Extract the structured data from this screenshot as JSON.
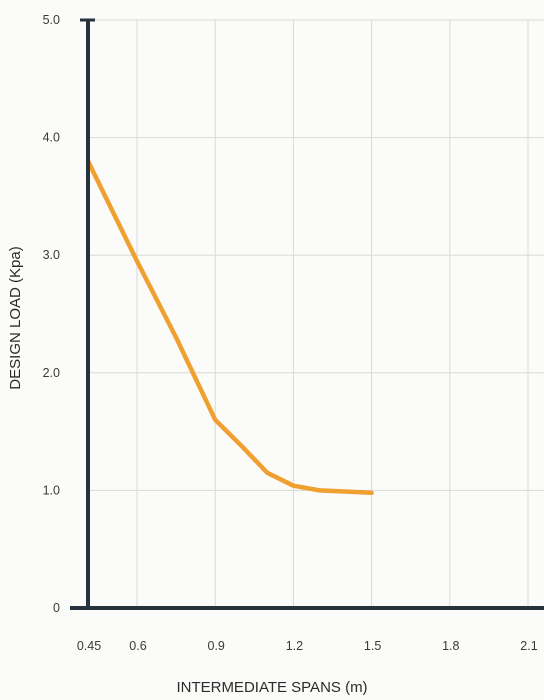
{
  "chart_data": {
    "type": "line",
    "title": "",
    "xlabel": "INTERMEDIATE SPANS (m)",
    "ylabel": "DESIGN LOAD  (Kpa)",
    "x_ticks": [
      0.45,
      0.6,
      0.9,
      1.2,
      1.5,
      1.8,
      2.1
    ],
    "x_tick_labels": [
      "0.45",
      "0.6",
      "0.9",
      "1.2",
      "1.5",
      "1.8",
      "2.1"
    ],
    "y_ticks": [
      0,
      1,
      2,
      3,
      4,
      5
    ],
    "y_tick_labels": [
      "0",
      "1.0",
      "2.0",
      "3.0",
      "4.0",
      "5.0"
    ],
    "xlim": [
      0.45,
      2.2
    ],
    "ylim": [
      0,
      5
    ],
    "grid": true,
    "legend": "none",
    "series": [
      {
        "color": "#f0a030",
        "x": [
          0.45,
          0.6,
          0.75,
          0.9,
          1.0,
          1.1,
          1.2,
          1.3,
          1.5
        ],
        "y": [
          3.8,
          2.95,
          2.3,
          1.6,
          1.38,
          1.15,
          1.04,
          1.0,
          0.98
        ]
      }
    ],
    "axis_color": "#26333d",
    "grid_color": "#d9d9d6"
  }
}
